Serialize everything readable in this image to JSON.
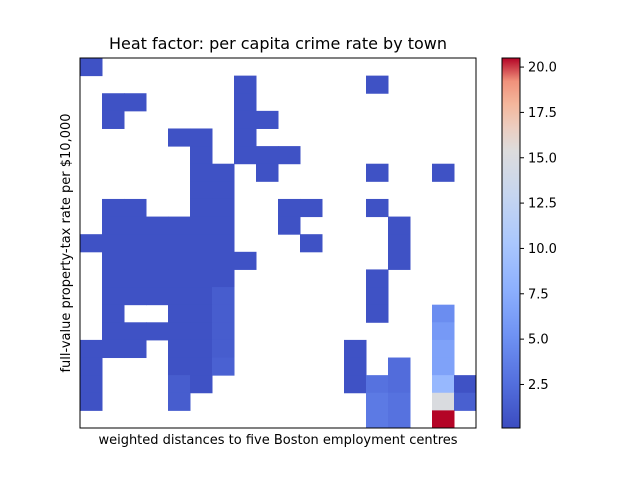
{
  "chart_data": {
    "type": "heatmap",
    "title": "Heat factor: per capita crime rate by town",
    "xlabel": "weighted distances to five Boston employment centres",
    "ylabel": "full-value property-tax rate per $10,000",
    "x_ticks_shown": false,
    "y_ticks_shown": false,
    "grid": [
      "E.................",
      ".......E.....E....",
      ".EE....E..........",
      ".E.....EE.........",
      "....EE.E..........",
      ".....E.EEE........",
      ".....EE.E....E..E.",
      ".....EE...........",
      ".EE..EE..EE..E....",
      ".EEEEEE..E....E...",
      "EEEEEEE...E...E...",
      ".EEEEEEE......E...",
      ".EEEEEE......E....",
      ".EEEEED......E....",
      ".E..EED......E..K.",
      ".EEEEED.........L.",
      "EEE.EED.....E...M.",
      "E...EEC.....E.F.M.",
      "E...DE......EGF.NE",
      "E...D........IG.RH",
      ".............IG.Z."
    ],
    "value_scale": {
      "E": 0.5,
      "D": 1.3,
      "C": 1.6,
      "F": 2.4,
      "G": 2.8,
      "H": 1.5,
      "I": 3.4,
      "K": 4.8,
      "L": 5.8,
      "M": 6.6,
      "N": 8.6,
      "R": 15.0,
      "Z": 20.5
    },
    "colorbar": {
      "min": 0.1,
      "max": 20.5,
      "ticks": [
        "2.5",
        "5.0",
        "7.5",
        "10.0",
        "12.5",
        "15.0",
        "17.5",
        "20.0"
      ],
      "tick_values": [
        2.5,
        5.0,
        7.5,
        10.0,
        12.5,
        15.0,
        17.5,
        20.0
      ],
      "colormap": "coolwarm"
    }
  }
}
